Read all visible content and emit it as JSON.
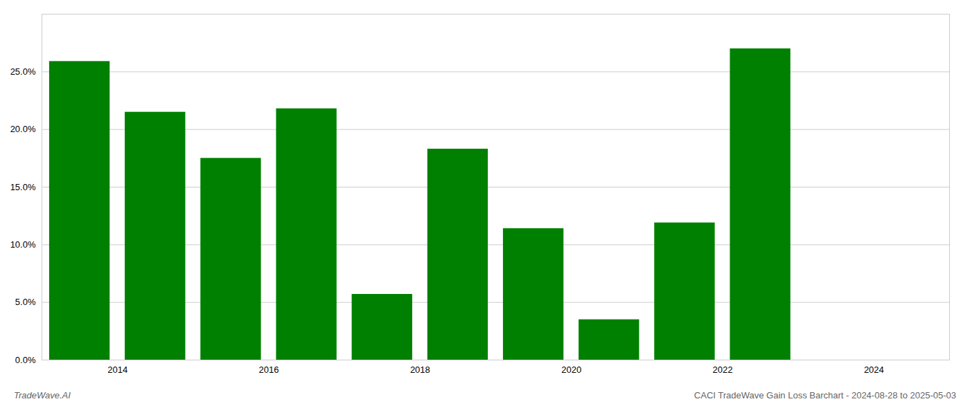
{
  "chart_data": {
    "type": "bar",
    "x": [
      2013.5,
      2014.5,
      2015.5,
      2016.5,
      2017.5,
      2018.5,
      2019.5,
      2020.5,
      2021.5,
      2022.5
    ],
    "values": [
      0.259,
      0.215,
      0.175,
      0.218,
      0.057,
      0.183,
      0.114,
      0.035,
      0.119,
      0.27
    ],
    "color": "#008000",
    "xlim": [
      2013.0,
      2025.0
    ],
    "xticks": [
      2014,
      2016,
      2018,
      2020,
      2022,
      2024
    ],
    "ylim": [
      0,
      0.3
    ],
    "yticks": [
      {
        "value": 0.0,
        "label": "0.0%"
      },
      {
        "value": 0.05,
        "label": "5.0%"
      },
      {
        "value": 0.1,
        "label": "10.0%"
      },
      {
        "value": 0.15,
        "label": "15.0%"
      },
      {
        "value": 0.2,
        "label": "20.0%"
      },
      {
        "value": 0.25,
        "label": "25.0%"
      }
    ],
    "grid": true,
    "annotations": [
      "TradeWave.AI",
      "CACI TradeWave Gain Loss Barchart - 2024-08-28 to 2025-05-03"
    ]
  }
}
